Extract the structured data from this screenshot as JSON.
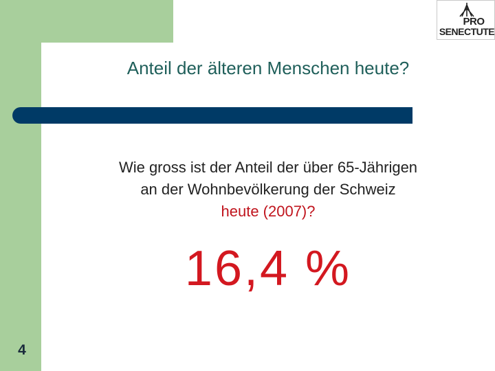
{
  "slide": {
    "title": "Anteil der älteren Menschen heute?",
    "question": {
      "line1": "Wie gross ist der Anteil der über 65-Jährigen",
      "line2": "an der Wohnbevölkerung der Schweiz",
      "line3": "heute (2007)?"
    },
    "answer": "16,4 %",
    "page_number": "4"
  },
  "logo": {
    "line1": "PRO",
    "line2": "SENECTUTE",
    "icon": "tree-icon"
  },
  "colors": {
    "green_band": "#a8cf9c",
    "title_text": "#1f5f5a",
    "bar": "#003a66",
    "accent_red": "#d31820"
  }
}
